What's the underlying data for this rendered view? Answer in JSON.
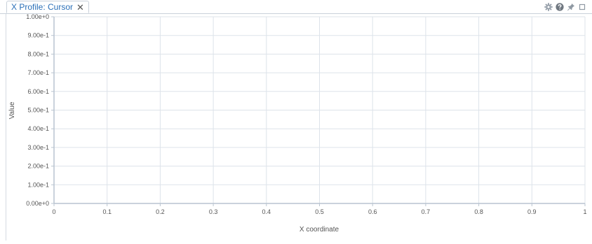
{
  "tab": {
    "title": "X Profile: Cursor",
    "close_icon": "close-icon"
  },
  "toolbar": {
    "icons": [
      "gear-icon",
      "help-icon",
      "pin-icon",
      "maximize-icon"
    ]
  },
  "chart_data": {
    "type": "line",
    "title": "",
    "xlabel": "X coordinate",
    "ylabel": "Value",
    "xlim": [
      0,
      1
    ],
    "ylim": [
      0,
      1
    ],
    "x_ticks": [
      "0",
      "0.1",
      "0.2",
      "0.3",
      "0.4",
      "0.5",
      "0.6",
      "0.7",
      "0.8",
      "0.9",
      "1"
    ],
    "x_tick_values": [
      0,
      0.1,
      0.2,
      0.3,
      0.4,
      0.5,
      0.6,
      0.7,
      0.8,
      0.9,
      1
    ],
    "y_ticks": [
      "0.00e+0",
      "1.00e-1",
      "2.00e-1",
      "3.00e-1",
      "4.00e-1",
      "5.00e-1",
      "6.00e-1",
      "7.00e-1",
      "8.00e-1",
      "9.00e-1",
      "1.00e+0"
    ],
    "y_tick_values": [
      0,
      0.1,
      0.2,
      0.3,
      0.4,
      0.5,
      0.6,
      0.7,
      0.8,
      0.9,
      1
    ],
    "grid": true,
    "series": [],
    "colors": {
      "grid": "#dde3ea",
      "axis": "#b9c4d0",
      "tick_text": "#555555"
    }
  }
}
